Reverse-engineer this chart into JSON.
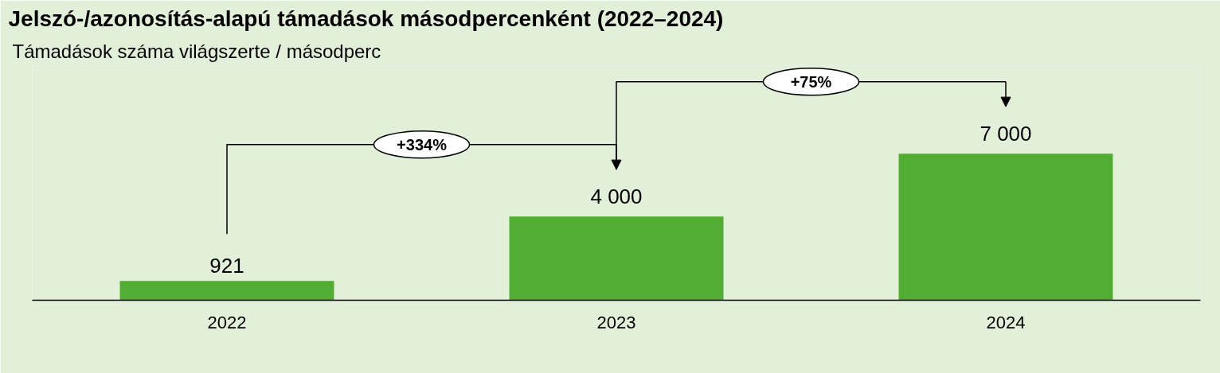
{
  "chart_data": {
    "type": "bar",
    "title": "Jelszó-/azonosítás-alapú támadások másodpercenként (2022–2024)",
    "subtitle": "Támadások száma világszerte / másodperc",
    "categories": [
      "2022",
      "2023",
      "2024"
    ],
    "values": [
      921,
      4000,
      7000
    ],
    "value_labels": [
      "921",
      "4 000",
      "7 000"
    ],
    "color": "#52ae32",
    "annotations": [
      "+334%",
      "+75%"
    ]
  }
}
